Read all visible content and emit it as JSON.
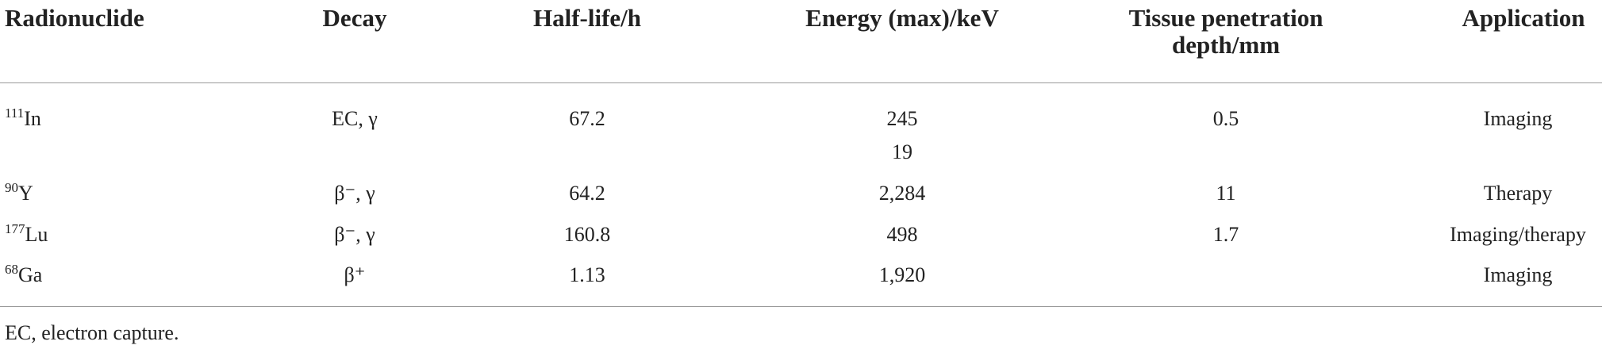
{
  "table": {
    "header": [
      "Radionuclide",
      "Decay",
      "Half-life/h",
      "Energy (max)/keV",
      "Tissue penetration depth/mm",
      "Application"
    ],
    "rows": [
      {
        "mass": "111",
        "symbol": "In",
        "decay": "EC, γ",
        "half_life": "67.2",
        "energy": [
          "245",
          "19"
        ],
        "depth": "0.5",
        "application": "Imaging"
      },
      {
        "mass": "90",
        "symbol": "Y",
        "decay": "β⁻, γ",
        "half_life": "64.2",
        "energy": [
          "2,284"
        ],
        "depth": "11",
        "application": "Therapy"
      },
      {
        "mass": "177",
        "symbol": "Lu",
        "decay": "β⁻, γ",
        "half_life": "160.8",
        "energy": [
          "498"
        ],
        "depth": "1.7",
        "application": "Imaging/therapy"
      },
      {
        "mass": "68",
        "symbol": "Ga",
        "decay": "β⁺",
        "half_life": "1.13",
        "energy": [
          "1,920"
        ],
        "application": "Imaging"
      }
    ]
  },
  "footnote": "EC, electron capture."
}
